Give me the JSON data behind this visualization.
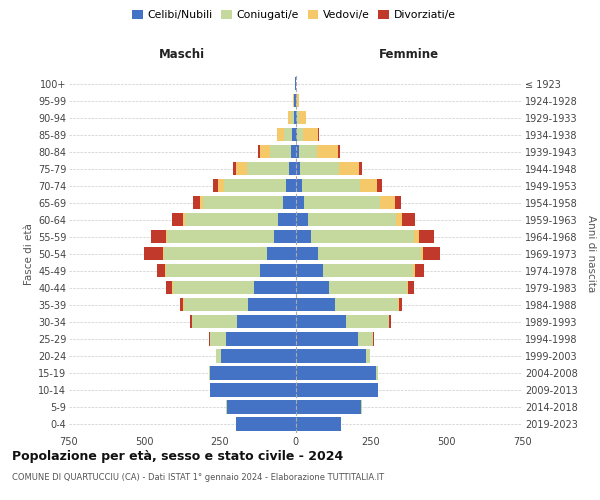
{
  "age_groups": [
    "100+",
    "95-99",
    "90-94",
    "85-89",
    "80-84",
    "75-79",
    "70-74",
    "65-69",
    "60-64",
    "55-59",
    "50-54",
    "45-49",
    "40-44",
    "35-39",
    "30-34",
    "25-29",
    "20-24",
    "15-19",
    "10-14",
    "5-9",
    "0-4"
  ],
  "birth_years": [
    "≤ 1923",
    "1924-1928",
    "1929-1933",
    "1934-1938",
    "1939-1943",
    "1944-1948",
    "1949-1953",
    "1954-1958",
    "1959-1963",
    "1964-1968",
    "1969-1973",
    "1974-1978",
    "1979-1983",
    "1984-1988",
    "1989-1993",
    "1994-1998",
    "1999-2003",
    "2004-2008",
    "2009-2013",
    "2014-2018",
    "2019-2023"
  ],
  "colors": {
    "celibe": "#4472c4",
    "coniugato": "#c5d89d",
    "vedovo": "#f5c96a",
    "divorziato": "#c0392b"
  },
  "male": {
    "celibe": [
      2,
      4,
      6,
      10,
      14,
      22,
      30,
      42,
      58,
      70,
      95,
      118,
      138,
      158,
      195,
      230,
      248,
      282,
      282,
      228,
      198
    ],
    "coniugato": [
      0,
      2,
      10,
      28,
      72,
      138,
      208,
      265,
      308,
      355,
      342,
      312,
      268,
      212,
      148,
      52,
      14,
      4,
      2,
      1,
      0
    ],
    "vedovo": [
      0,
      2,
      8,
      22,
      32,
      38,
      20,
      10,
      6,
      4,
      2,
      2,
      2,
      1,
      1,
      1,
      1,
      0,
      0,
      0,
      0
    ],
    "divorziato": [
      0,
      0,
      1,
      2,
      6,
      8,
      14,
      22,
      38,
      48,
      62,
      28,
      20,
      10,
      4,
      2,
      0,
      0,
      0,
      0,
      0
    ]
  },
  "female": {
    "nubile": [
      1,
      2,
      4,
      6,
      10,
      15,
      20,
      28,
      40,
      52,
      76,
      92,
      112,
      132,
      168,
      208,
      232,
      268,
      272,
      218,
      152
    ],
    "coniugata": [
      0,
      2,
      8,
      20,
      62,
      128,
      192,
      252,
      292,
      342,
      338,
      298,
      258,
      208,
      142,
      48,
      14,
      4,
      2,
      1,
      0
    ],
    "vedova": [
      2,
      6,
      22,
      48,
      68,
      68,
      58,
      48,
      22,
      14,
      8,
      5,
      3,
      2,
      1,
      1,
      0,
      0,
      0,
      0,
      0
    ],
    "divorziata": [
      0,
      0,
      1,
      3,
      6,
      10,
      16,
      20,
      42,
      52,
      58,
      32,
      20,
      10,
      5,
      2,
      1,
      0,
      0,
      0,
      0
    ]
  },
  "title": "Popolazione per età, sesso e stato civile - 2024",
  "subtitle": "COMUNE DI QUARTUCCIU (CA) - Dati ISTAT 1° gennaio 2024 - Elaborazione TUTTITALIA.IT",
  "xlabel_left": "Maschi",
  "xlabel_right": "Femmine",
  "ylabel_left": "Fasce di età",
  "ylabel_right": "Anni di nascita",
  "legend_labels": [
    "Celibi/Nubili",
    "Coniugati/e",
    "Vedovi/e",
    "Divorziati/e"
  ],
  "xlim": 750,
  "background_color": "#ffffff",
  "grid_color": "#cccccc"
}
